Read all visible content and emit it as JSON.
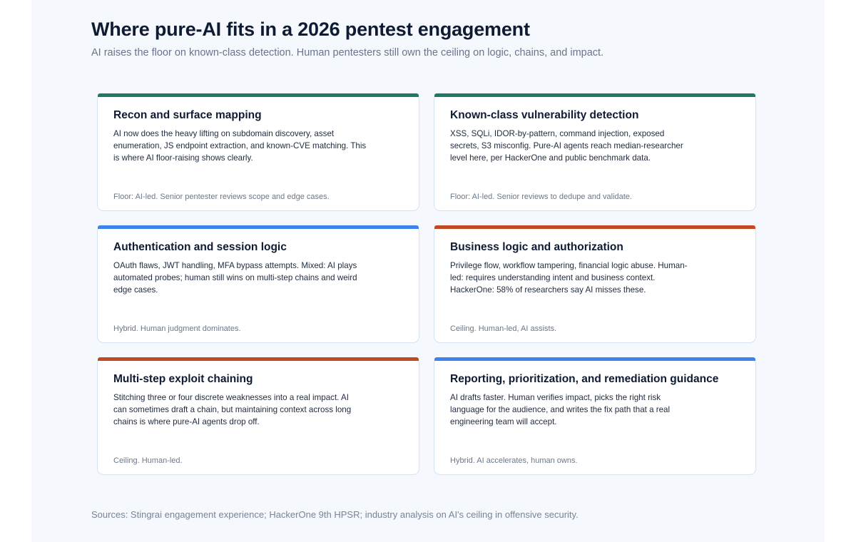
{
  "header": {
    "title": "Where pure-AI fits in a 2026 pentest engagement",
    "subtitle": "AI raises the floor on known-class detection. Human pentesters still own the ceiling on logic, chains, and impact."
  },
  "colors": {
    "floor": "#1e7a67",
    "hybrid": "#3e82ea",
    "ceiling": "#c04a24"
  },
  "cards": [
    {
      "category": "floor",
      "title": "Recon and surface mapping",
      "body": "AI now does the heavy lifting on subdomain discovery, asset enumeration, JS endpoint extraction, and known-CVE matching. This is where AI floor-raising shows clearly.",
      "footer": "Floor: AI-led. Senior pentester reviews scope and edge cases."
    },
    {
      "category": "floor",
      "title": "Known-class vulnerability detection",
      "body": "XSS, SQLi, IDOR-by-pattern, command injection, exposed secrets, S3 misconfig. Pure-AI agents reach median-researcher level here, per HackerOne and public benchmark data.",
      "footer": "Floor: AI-led. Senior reviews to dedupe and validate."
    },
    {
      "category": "hybrid",
      "title": "Authentication and session logic",
      "body": "OAuth flaws, JWT handling, MFA bypass attempts. Mixed: AI plays automated probes; human still wins on multi-step chains and weird edge cases.",
      "footer": "Hybrid. Human judgment dominates."
    },
    {
      "category": "ceiling",
      "title": "Business logic and authorization",
      "body": "Privilege flow, workflow tampering, financial logic abuse. Human-led: requires understanding intent and business context. HackerOne: 58% of researchers say AI misses these.",
      "footer": "Ceiling. Human-led, AI assists."
    },
    {
      "category": "ceiling",
      "title": "Multi-step exploit chaining",
      "body": "Stitching three or four discrete weaknesses into a real impact. AI can sometimes draft a chain, but maintaining context across long chains is where pure-AI agents drop off.",
      "footer": "Ceiling. Human-led."
    },
    {
      "category": "hybrid",
      "title": "Reporting, prioritization, and remediation guidance",
      "body": "AI drafts faster. Human verifies impact, picks the right risk language for the audience, and writes the fix path that a real engineering team will accept.",
      "footer": "Hybrid. AI accelerates, human owns."
    }
  ],
  "footer": {
    "sources": "Sources: Stingrai engagement experience; HackerOne 9th HPSR; industry analysis on AI's ceiling in offensive security."
  }
}
